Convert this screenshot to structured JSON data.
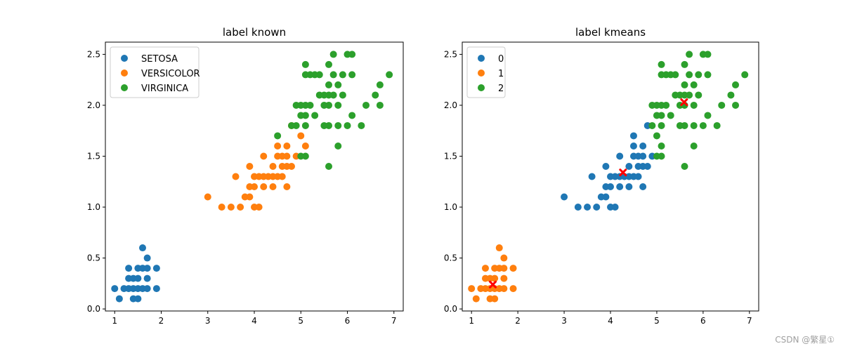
{
  "watermark": "CSDN @繁星①",
  "chart_data": [
    {
      "type": "scatter",
      "title": "label known",
      "xlabel": "",
      "ylabel": "",
      "xlim": [
        0.8,
        7.2
      ],
      "ylim": [
        -0.02,
        2.62
      ],
      "xticks": [
        1,
        2,
        3,
        4,
        5,
        6,
        7
      ],
      "yticks": [
        0.0,
        0.5,
        1.0,
        1.5,
        2.0,
        2.5
      ],
      "grid": false,
      "legend_position": "top-left",
      "series": [
        {
          "name": "SETOSA",
          "color": "#1f77b4",
          "points": [
            [
              1.1,
              0.1
            ],
            [
              1.4,
              0.1
            ],
            [
              1.5,
              0.1
            ],
            [
              1.0,
              0.2
            ],
            [
              1.2,
              0.2
            ],
            [
              1.3,
              0.2
            ],
            [
              1.4,
              0.2
            ],
            [
              1.5,
              0.2
            ],
            [
              1.6,
              0.2
            ],
            [
              1.7,
              0.2
            ],
            [
              1.9,
              0.2
            ],
            [
              1.3,
              0.3
            ],
            [
              1.4,
              0.3
            ],
            [
              1.5,
              0.3
            ],
            [
              1.7,
              0.3
            ],
            [
              1.3,
              0.4
            ],
            [
              1.5,
              0.4
            ],
            [
              1.6,
              0.4
            ],
            [
              1.7,
              0.4
            ],
            [
              1.9,
              0.4
            ],
            [
              1.7,
              0.5
            ],
            [
              1.6,
              0.6
            ]
          ]
        },
        {
          "name": "VERSICOLOR",
          "color": "#ff7f0e",
          "points": [
            [
              3.0,
              1.1
            ],
            [
              3.3,
              1.0
            ],
            [
              3.5,
              1.0
            ],
            [
              3.7,
              1.0
            ],
            [
              4.0,
              1.0
            ],
            [
              4.1,
              1.0
            ],
            [
              3.8,
              1.1
            ],
            [
              3.9,
              1.1
            ],
            [
              3.9,
              1.2
            ],
            [
              4.0,
              1.2
            ],
            [
              4.2,
              1.2
            ],
            [
              4.4,
              1.2
            ],
            [
              4.7,
              1.2
            ],
            [
              3.6,
              1.3
            ],
            [
              4.0,
              1.3
            ],
            [
              4.1,
              1.3
            ],
            [
              4.2,
              1.3
            ],
            [
              4.3,
              1.3
            ],
            [
              4.4,
              1.3
            ],
            [
              4.5,
              1.3
            ],
            [
              4.6,
              1.3
            ],
            [
              3.9,
              1.4
            ],
            [
              4.4,
              1.4
            ],
            [
              4.6,
              1.4
            ],
            [
              4.7,
              1.4
            ],
            [
              4.8,
              1.4
            ],
            [
              4.5,
              1.5
            ],
            [
              4.6,
              1.5
            ],
            [
              4.7,
              1.5
            ],
            [
              4.2,
              1.5
            ],
            [
              4.9,
              1.5
            ],
            [
              5.0,
              1.7
            ],
            [
              4.5,
              1.6
            ],
            [
              4.7,
              1.6
            ],
            [
              5.1,
              1.6
            ],
            [
              4.8,
              1.8
            ]
          ]
        },
        {
          "name": "VIRGINICA",
          "color": "#2ca02c",
          "points": [
            [
              5.0,
              1.5
            ],
            [
              5.1,
              1.5
            ],
            [
              5.6,
              1.4
            ],
            [
              4.5,
              1.7
            ],
            [
              5.8,
              1.6
            ],
            [
              4.8,
              1.8
            ],
            [
              4.9,
              1.8
            ],
            [
              5.1,
              1.8
            ],
            [
              5.5,
              1.8
            ],
            [
              5.6,
              1.8
            ],
            [
              5.8,
              1.8
            ],
            [
              6.0,
              1.8
            ],
            [
              6.3,
              1.8
            ],
            [
              5.0,
              1.9
            ],
            [
              5.1,
              1.9
            ],
            [
              5.3,
              1.9
            ],
            [
              6.1,
              1.9
            ],
            [
              4.9,
              2.0
            ],
            [
              5.0,
              2.0
            ],
            [
              5.1,
              2.0
            ],
            [
              5.2,
              2.0
            ],
            [
              5.5,
              2.0
            ],
            [
              5.6,
              2.0
            ],
            [
              5.8,
              2.0
            ],
            [
              6.4,
              2.0
            ],
            [
              6.7,
              2.0
            ],
            [
              5.4,
              2.1
            ],
            [
              5.5,
              2.1
            ],
            [
              5.6,
              2.1
            ],
            [
              5.7,
              2.1
            ],
            [
              5.9,
              2.1
            ],
            [
              6.6,
              2.1
            ],
            [
              5.6,
              2.2
            ],
            [
              5.8,
              2.2
            ],
            [
              6.7,
              2.2
            ],
            [
              5.1,
              2.3
            ],
            [
              5.2,
              2.3
            ],
            [
              5.3,
              2.3
            ],
            [
              5.4,
              2.3
            ],
            [
              5.7,
              2.3
            ],
            [
              5.9,
              2.3
            ],
            [
              6.1,
              2.3
            ],
            [
              6.9,
              2.3
            ],
            [
              5.1,
              2.4
            ],
            [
              5.6,
              2.4
            ],
            [
              5.7,
              2.5
            ],
            [
              6.0,
              2.5
            ],
            [
              6.1,
              2.5
            ]
          ]
        }
      ]
    },
    {
      "type": "scatter",
      "title": "label kmeans",
      "xlabel": "",
      "ylabel": "",
      "xlim": [
        0.8,
        7.2
      ],
      "ylim": [
        -0.02,
        2.62
      ],
      "xticks": [
        1,
        2,
        3,
        4,
        5,
        6,
        7
      ],
      "yticks": [
        0.0,
        0.5,
        1.0,
        1.5,
        2.0,
        2.5
      ],
      "grid": false,
      "legend_position": "top-left",
      "series": [
        {
          "name": "0",
          "color": "#1f77b4",
          "points": [
            [
              3.0,
              1.1
            ],
            [
              3.3,
              1.0
            ],
            [
              3.5,
              1.0
            ],
            [
              3.7,
              1.0
            ],
            [
              4.0,
              1.0
            ],
            [
              4.1,
              1.0
            ],
            [
              3.8,
              1.1
            ],
            [
              3.9,
              1.1
            ],
            [
              3.9,
              1.2
            ],
            [
              4.0,
              1.2
            ],
            [
              4.2,
              1.2
            ],
            [
              4.4,
              1.2
            ],
            [
              4.7,
              1.2
            ],
            [
              3.6,
              1.3
            ],
            [
              4.0,
              1.3
            ],
            [
              4.1,
              1.3
            ],
            [
              4.2,
              1.3
            ],
            [
              4.3,
              1.3
            ],
            [
              4.4,
              1.3
            ],
            [
              4.5,
              1.3
            ],
            [
              4.6,
              1.3
            ],
            [
              3.9,
              1.4
            ],
            [
              4.4,
              1.4
            ],
            [
              4.6,
              1.4
            ],
            [
              4.7,
              1.4
            ],
            [
              4.8,
              1.4
            ],
            [
              4.5,
              1.5
            ],
            [
              4.6,
              1.5
            ],
            [
              4.7,
              1.5
            ],
            [
              4.2,
              1.5
            ],
            [
              4.9,
              1.5
            ],
            [
              4.5,
              1.6
            ],
            [
              4.7,
              1.6
            ],
            [
              4.5,
              1.7
            ],
            [
              4.8,
              1.8
            ]
          ]
        },
        {
          "name": "1",
          "color": "#ff7f0e",
          "points": [
            [
              1.1,
              0.1
            ],
            [
              1.4,
              0.1
            ],
            [
              1.5,
              0.1
            ],
            [
              1.0,
              0.2
            ],
            [
              1.2,
              0.2
            ],
            [
              1.3,
              0.2
            ],
            [
              1.4,
              0.2
            ],
            [
              1.5,
              0.2
            ],
            [
              1.6,
              0.2
            ],
            [
              1.7,
              0.2
            ],
            [
              1.9,
              0.2
            ],
            [
              1.3,
              0.3
            ],
            [
              1.4,
              0.3
            ],
            [
              1.5,
              0.3
            ],
            [
              1.7,
              0.3
            ],
            [
              1.3,
              0.4
            ],
            [
              1.5,
              0.4
            ],
            [
              1.6,
              0.4
            ],
            [
              1.7,
              0.4
            ],
            [
              1.9,
              0.4
            ],
            [
              1.7,
              0.5
            ],
            [
              1.6,
              0.6
            ]
          ]
        },
        {
          "name": "2",
          "color": "#2ca02c",
          "points": [
            [
              5.0,
              1.5
            ],
            [
              5.1,
              1.5
            ],
            [
              5.1,
              1.6
            ],
            [
              5.6,
              1.4
            ],
            [
              5.8,
              1.6
            ],
            [
              5.0,
              1.7
            ],
            [
              4.9,
              1.8
            ],
            [
              5.1,
              1.8
            ],
            [
              5.5,
              1.8
            ],
            [
              5.6,
              1.8
            ],
            [
              5.8,
              1.8
            ],
            [
              6.0,
              1.8
            ],
            [
              6.3,
              1.8
            ],
            [
              5.0,
              1.9
            ],
            [
              5.1,
              1.9
            ],
            [
              5.3,
              1.9
            ],
            [
              6.1,
              1.9
            ],
            [
              4.9,
              2.0
            ],
            [
              5.0,
              2.0
            ],
            [
              5.1,
              2.0
            ],
            [
              5.2,
              2.0
            ],
            [
              5.5,
              2.0
            ],
            [
              5.6,
              2.0
            ],
            [
              5.8,
              2.0
            ],
            [
              6.4,
              2.0
            ],
            [
              6.7,
              2.0
            ],
            [
              5.4,
              2.1
            ],
            [
              5.5,
              2.1
            ],
            [
              5.6,
              2.1
            ],
            [
              5.7,
              2.1
            ],
            [
              5.9,
              2.1
            ],
            [
              6.6,
              2.1
            ],
            [
              5.6,
              2.2
            ],
            [
              5.8,
              2.2
            ],
            [
              6.7,
              2.2
            ],
            [
              5.1,
              2.3
            ],
            [
              5.2,
              2.3
            ],
            [
              5.3,
              2.3
            ],
            [
              5.4,
              2.3
            ],
            [
              5.7,
              2.3
            ],
            [
              5.9,
              2.3
            ],
            [
              6.1,
              2.3
            ],
            [
              6.9,
              2.3
            ],
            [
              5.1,
              2.4
            ],
            [
              5.6,
              2.4
            ],
            [
              5.7,
              2.5
            ],
            [
              6.0,
              2.5
            ],
            [
              6.1,
              2.5
            ]
          ]
        }
      ],
      "centroids": {
        "color": "#ff0000",
        "marker": "x",
        "points": [
          [
            1.46,
            0.24
          ],
          [
            4.27,
            1.34
          ],
          [
            5.59,
            2.03
          ]
        ]
      }
    }
  ]
}
